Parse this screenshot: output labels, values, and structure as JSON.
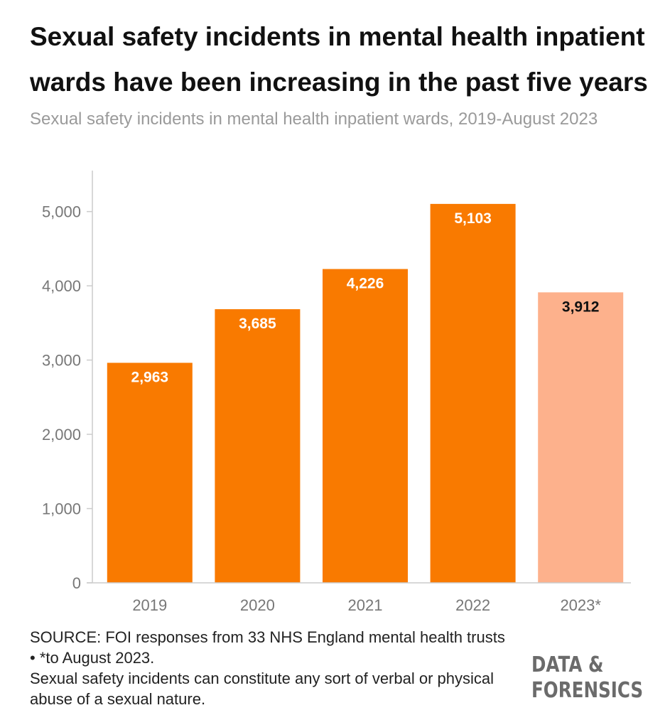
{
  "title": "Sexual safety incidents in mental health inpatient wards have been increasing in the past five years",
  "subtitle": "Sexual safety incidents in mental health inpatient wards, 2019-August 2023",
  "chart_data": {
    "type": "bar",
    "title": "Sexual safety incidents in mental health inpatient wards have been increasing in the past five years",
    "subtitle": "Sexual safety incidents in mental health inpatient wards, 2019-August 2023",
    "categories": [
      "2019",
      "2020",
      "2021",
      "2022",
      "2023*"
    ],
    "values": [
      2963,
      3685,
      4226,
      5103,
      3912
    ],
    "value_labels": [
      "2,963",
      "3,685",
      "4,226",
      "5,103",
      "3,912"
    ],
    "bar_colors": [
      "#f97a00",
      "#f97a00",
      "#f97a00",
      "#f97a00",
      "#fdb18c"
    ],
    "label_colors": [
      "#ffffff",
      "#ffffff",
      "#ffffff",
      "#ffffff",
      "#111111"
    ],
    "ylim": [
      0,
      5200
    ],
    "yticks": [
      0,
      1000,
      2000,
      3000,
      4000,
      5000
    ],
    "ytick_labels": [
      "0",
      "1,000",
      "2,000",
      "3,000",
      "4,000",
      "5,000"
    ],
    "xlabel": "",
    "ylabel": "",
    "grid": false
  },
  "footer": {
    "source": "SOURCE: FOI responses from 33 NHS England mental health trusts • *to August 2023.",
    "note": "Sexual safety incidents can constitute any sort of verbal or physical abuse of a sexual nature."
  },
  "brand": {
    "line1": "DATA &",
    "line2": "FORENSICS"
  },
  "colors": {
    "bar": "#f97a00",
    "bar_partial": "#fdb18c",
    "axis": "#cccccc",
    "tick_text": "#777777"
  }
}
